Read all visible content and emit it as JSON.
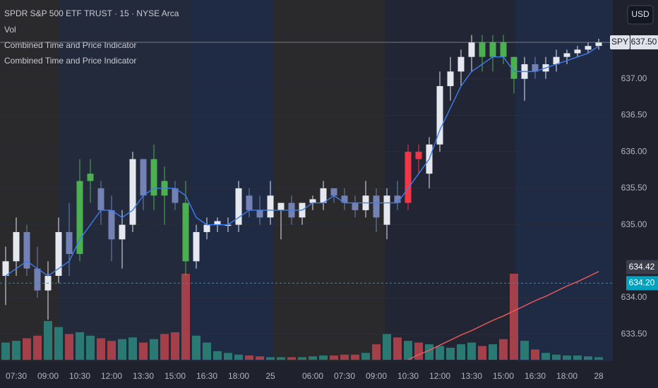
{
  "header": {
    "symbol_line": "SPDR S&P 500 ETF TRUST · 15 · NYSE Arca",
    "indicators": [
      "Vol",
      "Combined Time and Price Indicator",
      "Combined Time and Price Indicator"
    ],
    "currency": "USD"
  },
  "chart_data": {
    "type": "candlestick",
    "categories": [
      null,
      "07:30",
      null,
      null,
      "09:00",
      null,
      null,
      "10:30",
      null,
      null,
      "12:00",
      null,
      null,
      "13:30",
      null,
      null,
      "15:00",
      null,
      null,
      "16:30",
      null,
      null,
      "18:00",
      null,
      null,
      "25",
      null,
      null,
      null,
      "06:00",
      null,
      null,
      "07:30",
      null,
      null,
      "09:00",
      null,
      null,
      "10:30",
      null,
      null,
      "12:00",
      null,
      null,
      "13:30",
      null,
      null,
      "15:00",
      null,
      null,
      "16:30",
      null,
      null,
      "18:00",
      null,
      null,
      "28"
    ],
    "open": [
      634.3,
      634.5,
      634.9,
      634.4,
      634.1,
      634.3,
      634.9,
      634.6,
      635.6,
      635.5,
      635.2,
      634.8,
      635.0,
      635.9,
      635.4,
      635.6,
      635.5,
      635.3,
      634.5,
      634.9,
      635.0,
      635.0,
      635.0,
      635.4,
      635.2,
      635.1,
      635.2,
      635.3,
      635.1,
      635.3,
      635.3,
      635.5,
      635.4,
      635.3,
      635.2,
      635.4,
      635.0,
      635.4,
      635.3,
      636.0,
      635.7,
      636.1,
      636.9,
      637.1,
      637.3,
      637.5,
      637.3,
      637.5,
      637.3,
      637.0,
      637.2,
      637.1,
      637.2,
      637.3,
      637.35,
      637.4,
      637.45
    ],
    "high": [
      634.7,
      635.1,
      635.0,
      634.7,
      634.5,
      635.1,
      635.3,
      635.9,
      635.9,
      635.6,
      635.4,
      635.2,
      636.0,
      635.9,
      636.1,
      635.8,
      635.6,
      635.6,
      635.0,
      635.1,
      635.1,
      635.1,
      635.6,
      635.5,
      635.4,
      635.6,
      635.3,
      635.4,
      635.3,
      635.4,
      635.6,
      635.5,
      635.5,
      635.4,
      635.6,
      635.5,
      635.5,
      635.6,
      636.1,
      636.1,
      636.2,
      637.1,
      637.3,
      637.4,
      637.6,
      637.6,
      637.6,
      637.6,
      637.3,
      637.3,
      637.3,
      637.3,
      637.4,
      637.4,
      637.45,
      637.5,
      637.55
    ],
    "low": [
      633.9,
      634.3,
      634.3,
      634.0,
      633.7,
      634.2,
      634.3,
      634.5,
      635.3,
      635.0,
      634.5,
      634.4,
      634.9,
      635.2,
      635.2,
      635.0,
      635.2,
      634.3,
      634.4,
      634.8,
      634.9,
      634.9,
      634.9,
      635.1,
      635.0,
      635.0,
      634.8,
      635.0,
      635.0,
      635.2,
      635.2,
      635.3,
      635.2,
      635.1,
      635.1,
      634.9,
      634.8,
      635.2,
      635.2,
      635.7,
      635.5,
      636.0,
      636.7,
      636.9,
      637.1,
      637.1,
      637.1,
      637.2,
      636.8,
      636.7,
      637.0,
      637.0,
      637.1,
      637.2,
      637.3,
      637.35,
      637.4
    ],
    "close": [
      634.5,
      634.9,
      634.4,
      634.1,
      634.3,
      634.9,
      634.6,
      635.6,
      635.7,
      635.2,
      634.8,
      635.0,
      635.9,
      635.4,
      635.9,
      635.4,
      635.3,
      634.5,
      634.9,
      635.0,
      635.05,
      635.0,
      635.5,
      635.2,
      635.1,
      635.4,
      635.3,
      635.1,
      635.3,
      635.35,
      635.5,
      635.4,
      635.3,
      635.2,
      635.4,
      635.1,
      635.4,
      635.3,
      636.0,
      635.9,
      636.1,
      636.9,
      637.1,
      637.3,
      637.5,
      637.3,
      637.5,
      637.3,
      637.0,
      637.2,
      637.1,
      637.2,
      637.3,
      637.35,
      637.4,
      637.45,
      637.5
    ],
    "colors": [
      null,
      null,
      null,
      null,
      null,
      null,
      null,
      "#4caf50",
      "#4caf50",
      null,
      null,
      null,
      null,
      null,
      "#4caf50",
      "#4caf50",
      null,
      "#4caf50",
      null,
      null,
      null,
      null,
      null,
      null,
      null,
      null,
      null,
      null,
      null,
      null,
      null,
      null,
      null,
      null,
      null,
      null,
      null,
      null,
      "#f23645",
      "#f23645",
      null,
      null,
      null,
      null,
      null,
      "#4caf50",
      "#4caf50",
      "#4caf50",
      "#4caf50",
      null,
      null,
      null,
      null,
      null,
      null,
      null,
      null
    ],
    "up_color": "#e6e8f0",
    "down_color": "#7381b4",
    "ma": {
      "color": "#3d7ef0",
      "values": [
        634.3,
        634.4,
        634.5,
        634.4,
        634.3,
        634.4,
        634.5,
        634.8,
        635.0,
        635.2,
        635.2,
        635.1,
        635.2,
        635.4,
        635.5,
        635.5,
        635.5,
        635.4,
        635.1,
        635.0,
        635.0,
        635.0,
        635.1,
        635.2,
        635.2,
        635.2,
        635.2,
        635.2,
        635.2,
        635.3,
        635.3,
        635.4,
        635.3,
        635.3,
        635.3,
        635.3,
        635.3,
        635.3,
        635.5,
        635.7,
        635.9,
        636.3,
        636.6,
        636.9,
        637.1,
        637.2,
        637.3,
        637.3,
        637.1,
        637.1,
        637.1,
        637.15,
        637.2,
        637.25,
        637.3,
        637.35,
        637.45
      ]
    },
    "trend": {
      "color": "#f05a5a",
      "values": [
        null,
        null,
        null,
        null,
        null,
        null,
        null,
        null,
        null,
        null,
        null,
        null,
        null,
        null,
        null,
        null,
        null,
        null,
        null,
        null,
        null,
        null,
        null,
        null,
        null,
        null,
        null,
        null,
        null,
        null,
        null,
        null,
        null,
        null,
        null,
        null,
        null,
        null,
        633.15,
        633.22,
        633.28,
        633.35,
        633.42,
        633.49,
        633.55,
        633.62,
        633.69,
        633.75,
        633.82,
        633.89,
        633.96,
        634.02,
        634.09,
        634.16,
        634.22,
        634.29,
        634.36
      ]
    },
    "volume": {
      "values": [
        20,
        22,
        25,
        28,
        45,
        38,
        30,
        32,
        28,
        25,
        22,
        24,
        26,
        20,
        24,
        30,
        32,
        100,
        28,
        20,
        10,
        8,
        6,
        5,
        4,
        3,
        3,
        3,
        3,
        4,
        5,
        5,
        6,
        6,
        8,
        18,
        30,
        26,
        22,
        20,
        18,
        16,
        14,
        18,
        20,
        16,
        18,
        24,
        100,
        22,
        12,
        8,
        6,
        5,
        5,
        4,
        3
      ],
      "vlim": [
        0,
        100
      ],
      "up_color": "#2a7a73",
      "down_color": "#a3404a"
    },
    "ylim": [
      633.15,
      638.08
    ],
    "yticks": [
      {
        "value": 633.5,
        "label": "633.50"
      },
      {
        "value": 634,
        "label": "634.00"
      },
      {
        "value": 635,
        "label": "635.00"
      },
      {
        "value": 635.5,
        "label": "635.50"
      },
      {
        "value": 636,
        "label": "636.00"
      },
      {
        "value": 636.5,
        "label": "636.50"
      },
      {
        "value": 637,
        "label": "637.00"
      }
    ],
    "grid": true,
    "last_price": {
      "symbol": "SPY",
      "value": 637.5,
      "label": "637.50"
    },
    "price_marks": [
      {
        "value": 634.42,
        "label": "634.42",
        "color": "#3a3e4a"
      },
      {
        "value": 634.2,
        "label": "634.20",
        "color": "#00a3bf"
      }
    ]
  }
}
